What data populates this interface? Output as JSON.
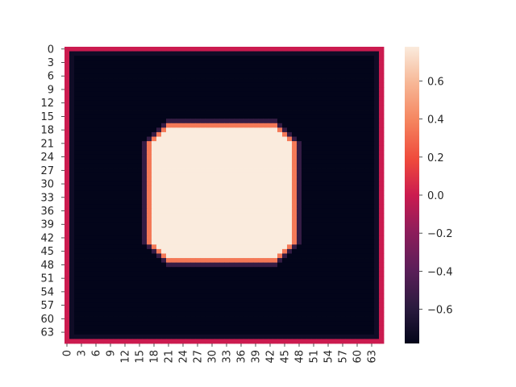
{
  "chart_data": {
    "type": "heatmap",
    "title": "",
    "xlabel": "",
    "ylabel": "",
    "grid": false,
    "rows": 66,
    "cols": 66,
    "x_ticks": [
      "0",
      "3",
      "6",
      "9",
      "12",
      "15",
      "18",
      "21",
      "24",
      "27",
      "30",
      "33",
      "36",
      "39",
      "42",
      "45",
      "48",
      "51",
      "54",
      "57",
      "60",
      "63"
    ],
    "y_ticks": [
      "0",
      "3",
      "6",
      "9",
      "12",
      "15",
      "18",
      "21",
      "24",
      "27",
      "30",
      "33",
      "36",
      "39",
      "42",
      "45",
      "48",
      "51",
      "54",
      "57",
      "60",
      "63"
    ],
    "colorbar": {
      "range": [
        -0.78,
        0.78
      ],
      "ticks": [
        {
          "value": 0.6,
          "label": "0.6"
        },
        {
          "value": 0.4,
          "label": "0.4"
        },
        {
          "value": 0.2,
          "label": "0.2"
        },
        {
          "value": 0.0,
          "label": "0.0"
        },
        {
          "value": -0.2,
          "label": "−0.2"
        },
        {
          "value": -0.4,
          "label": "−0.4"
        },
        {
          "value": -0.6,
          "label": "−0.6"
        }
      ],
      "colormap": "rocket"
    },
    "values_description_free": true,
    "regions": {
      "border_value": 0.0,
      "background_value": -0.78,
      "interior_value": 0.78,
      "edge_value": 0.35,
      "center": [
        32.5,
        32.5
      ],
      "half_width": 15.2,
      "octagon_diagonal": 18.8
    }
  },
  "colors": {
    "low": "#03051a",
    "mid": "#cb1b4f",
    "high": "#faebdd"
  }
}
